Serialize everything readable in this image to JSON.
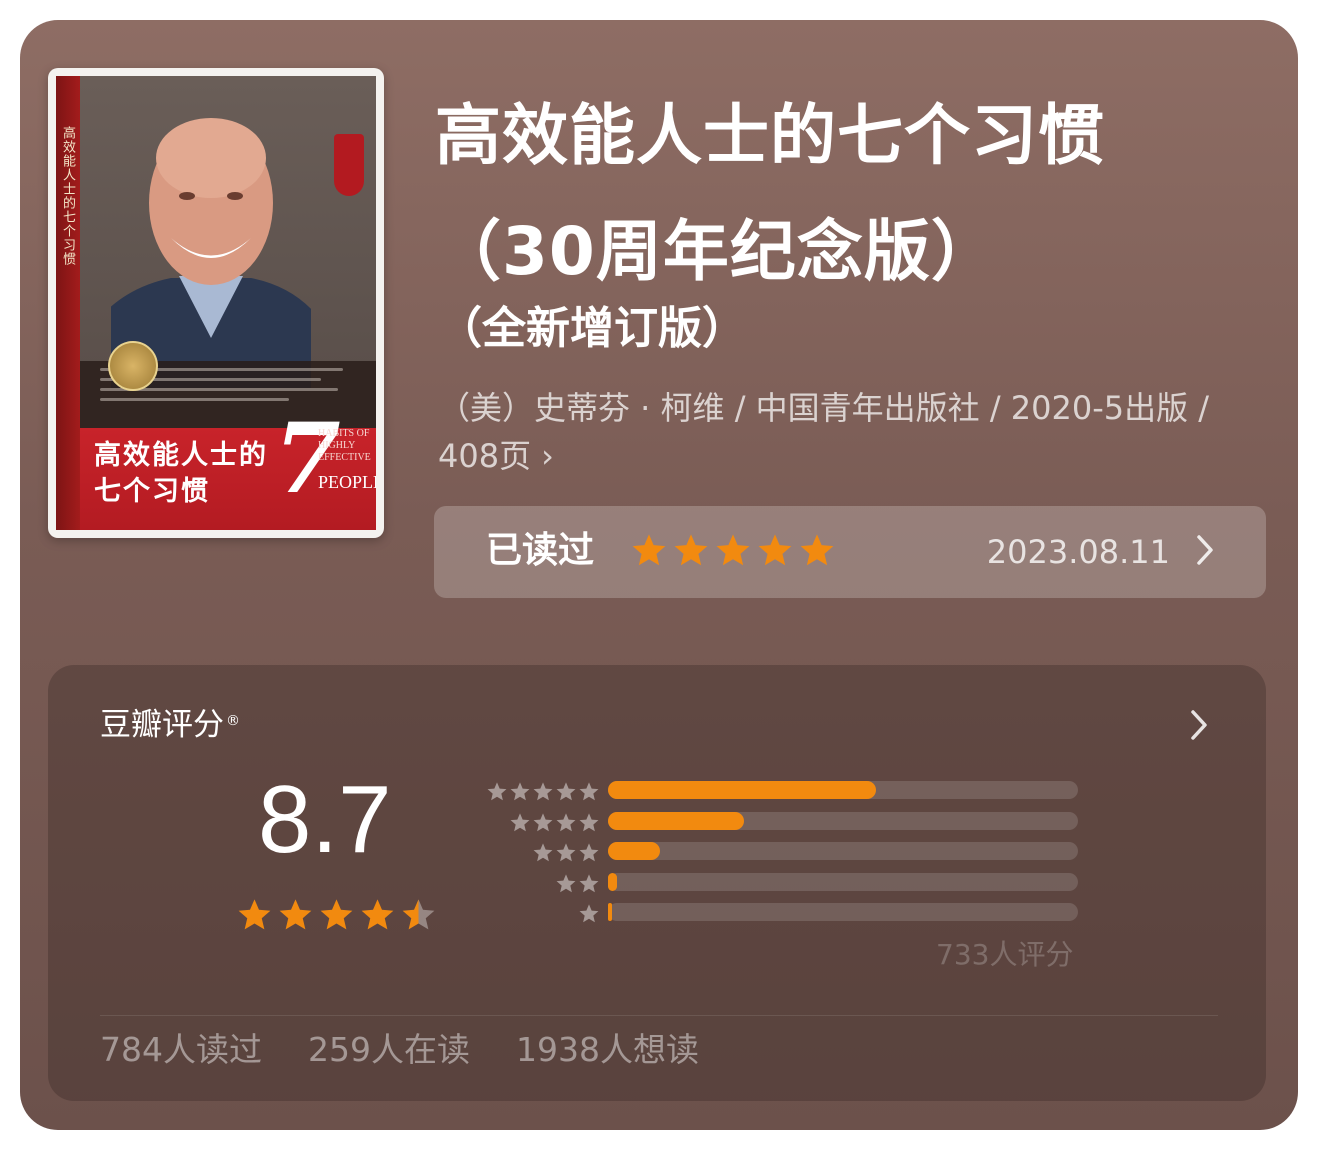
{
  "book": {
    "title_line1": "高效能人士的七个习惯",
    "title_line2": "（30周年纪念版）",
    "subtitle": "（全新增订版）",
    "meta": "（美）史蒂芬 · 柯维 / 中国青年出版社 / 2020-5出版 / 408页",
    "meta_chevron": "›"
  },
  "cover": {
    "title": "高效能人士的七个习惯",
    "spine_text": "高效能人士的七个习惯",
    "seven": "7",
    "habits_text": "HABITS of HIGHLY EFFECTIVE",
    "people_text": "PEOPLE"
  },
  "reading_status": {
    "label": "已读过",
    "my_rating": 5,
    "date": "2023.08.11",
    "star_color": "#f28a0f"
  },
  "douban_rating": {
    "title": "豆瓣评分",
    "registered_mark": "®",
    "score": "8.7",
    "stars": 4.5,
    "distribution": [
      {
        "stars": 5,
        "fraction": 0.57
      },
      {
        "stars": 4,
        "fraction": 0.29
      },
      {
        "stars": 3,
        "fraction": 0.11
      },
      {
        "stars": 2,
        "fraction": 0.02
      },
      {
        "stars": 1,
        "fraction": 0.005
      }
    ],
    "rating_count": "733人评分",
    "bar_color": "#f28a0f"
  },
  "stats": {
    "read": "784人读过",
    "reading": "259人在读",
    "wish": "1938人想读"
  }
}
